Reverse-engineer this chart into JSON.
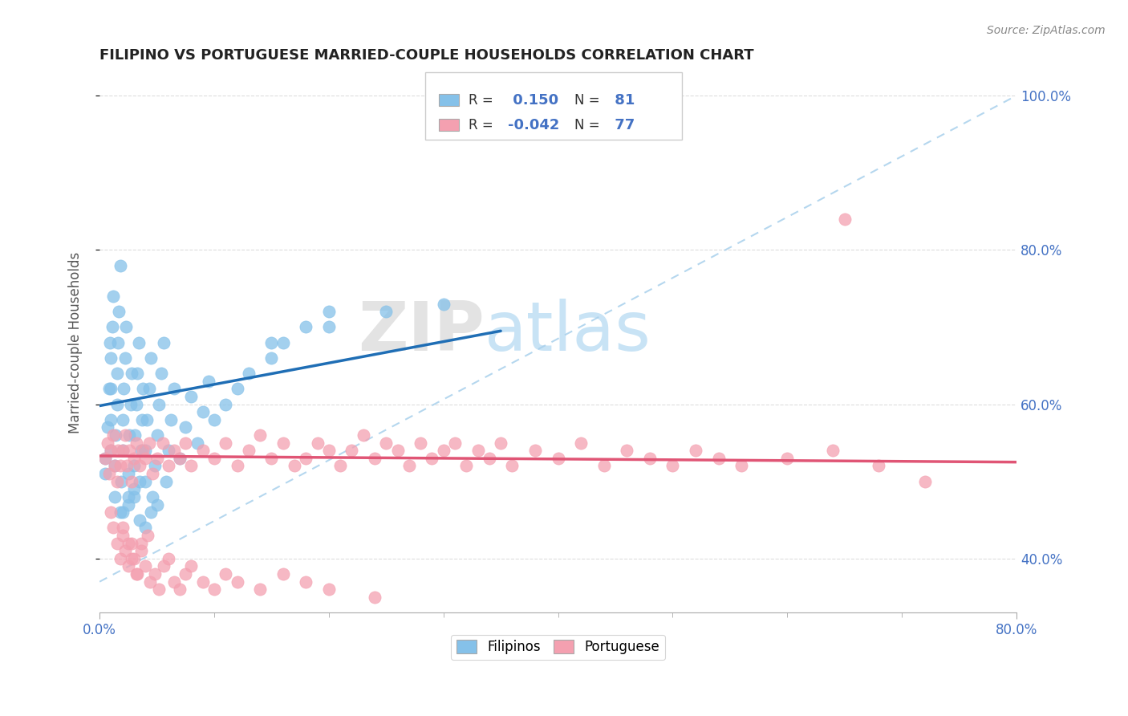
{
  "title": "FILIPINO VS PORTUGUESE MARRIED-COUPLE HOUSEHOLDS CORRELATION CHART",
  "source": "Source: ZipAtlas.com",
  "ylabel": "Married-couple Households",
  "xlim": [
    0.0,
    0.8
  ],
  "ylim": [
    0.33,
    1.03
  ],
  "xticks_major": [
    0.0,
    0.8
  ],
  "xticks_minor": [
    0.1,
    0.2,
    0.3,
    0.4,
    0.5,
    0.6,
    0.7
  ],
  "yticks": [
    0.4,
    0.6,
    0.8,
    1.0
  ],
  "filipino_color": "#85c1e9",
  "filipino_trend_color": "#1f6eb5",
  "portuguese_color": "#f4a0b0",
  "portuguese_trend_color": "#e05575",
  "dashed_line_color": "#a8d0ec",
  "filipino_R": 0.15,
  "filipino_N": 81,
  "portuguese_R": -0.042,
  "portuguese_N": 77,
  "legend_labels": [
    "Filipinos",
    "Portuguese"
  ],
  "watermark_zip": "ZIP",
  "watermark_atlas": "atlas",
  "grid_color": "#dddddd",
  "filipinos_x": [
    0.005,
    0.005,
    0.007,
    0.008,
    0.009,
    0.01,
    0.01,
    0.01,
    0.01,
    0.011,
    0.012,
    0.013,
    0.013,
    0.014,
    0.015,
    0.015,
    0.016,
    0.017,
    0.018,
    0.018,
    0.019,
    0.02,
    0.02,
    0.021,
    0.022,
    0.023,
    0.025,
    0.025,
    0.026,
    0.027,
    0.028,
    0.03,
    0.03,
    0.031,
    0.032,
    0.033,
    0.034,
    0.035,
    0.036,
    0.037,
    0.038,
    0.04,
    0.04,
    0.041,
    0.043,
    0.045,
    0.046,
    0.048,
    0.05,
    0.052,
    0.054,
    0.056,
    0.058,
    0.06,
    0.062,
    0.065,
    0.07,
    0.075,
    0.08,
    0.085,
    0.09,
    0.095,
    0.1,
    0.11,
    0.12,
    0.13,
    0.15,
    0.16,
    0.18,
    0.2,
    0.15,
    0.2,
    0.25,
    0.3,
    0.02,
    0.025,
    0.03,
    0.035,
    0.04,
    0.045,
    0.05
  ],
  "filipinos_y": [
    0.51,
    0.53,
    0.57,
    0.62,
    0.68,
    0.54,
    0.58,
    0.62,
    0.66,
    0.7,
    0.74,
    0.48,
    0.52,
    0.56,
    0.6,
    0.64,
    0.68,
    0.72,
    0.78,
    0.46,
    0.5,
    0.54,
    0.58,
    0.62,
    0.66,
    0.7,
    0.47,
    0.51,
    0.56,
    0.6,
    0.64,
    0.48,
    0.52,
    0.56,
    0.6,
    0.64,
    0.68,
    0.5,
    0.54,
    0.58,
    0.62,
    0.5,
    0.54,
    0.58,
    0.62,
    0.66,
    0.48,
    0.52,
    0.56,
    0.6,
    0.64,
    0.68,
    0.5,
    0.54,
    0.58,
    0.62,
    0.53,
    0.57,
    0.61,
    0.55,
    0.59,
    0.63,
    0.58,
    0.6,
    0.62,
    0.64,
    0.66,
    0.68,
    0.7,
    0.72,
    0.68,
    0.7,
    0.72,
    0.73,
    0.46,
    0.48,
    0.49,
    0.45,
    0.44,
    0.46,
    0.47
  ],
  "portuguese_x": [
    0.005,
    0.007,
    0.008,
    0.01,
    0.012,
    0.013,
    0.015,
    0.016,
    0.018,
    0.02,
    0.022,
    0.024,
    0.026,
    0.028,
    0.03,
    0.032,
    0.035,
    0.038,
    0.04,
    0.043,
    0.046,
    0.05,
    0.055,
    0.06,
    0.065,
    0.07,
    0.075,
    0.08,
    0.09,
    0.1,
    0.11,
    0.12,
    0.13,
    0.14,
    0.15,
    0.16,
    0.17,
    0.18,
    0.19,
    0.2,
    0.21,
    0.22,
    0.23,
    0.24,
    0.25,
    0.26,
    0.27,
    0.28,
    0.29,
    0.3,
    0.31,
    0.32,
    0.33,
    0.34,
    0.35,
    0.36,
    0.38,
    0.4,
    0.42,
    0.44,
    0.46,
    0.48,
    0.5,
    0.52,
    0.54,
    0.56,
    0.6,
    0.64,
    0.68,
    0.72,
    0.02,
    0.025,
    0.028,
    0.032,
    0.036,
    0.042,
    0.65
  ],
  "portuguese_y": [
    0.53,
    0.55,
    0.51,
    0.54,
    0.56,
    0.52,
    0.5,
    0.54,
    0.52,
    0.54,
    0.56,
    0.52,
    0.54,
    0.5,
    0.53,
    0.55,
    0.52,
    0.54,
    0.53,
    0.55,
    0.51,
    0.53,
    0.55,
    0.52,
    0.54,
    0.53,
    0.55,
    0.52,
    0.54,
    0.53,
    0.55,
    0.52,
    0.54,
    0.56,
    0.53,
    0.55,
    0.52,
    0.53,
    0.55,
    0.54,
    0.52,
    0.54,
    0.56,
    0.53,
    0.55,
    0.54,
    0.52,
    0.55,
    0.53,
    0.54,
    0.55,
    0.52,
    0.54,
    0.53,
    0.55,
    0.52,
    0.54,
    0.53,
    0.55,
    0.52,
    0.54,
    0.53,
    0.52,
    0.54,
    0.53,
    0.52,
    0.53,
    0.54,
    0.52,
    0.5,
    0.44,
    0.42,
    0.4,
    0.38,
    0.42,
    0.43,
    0.84
  ],
  "por_low_x": [
    0.01,
    0.012,
    0.015,
    0.018,
    0.02,
    0.022,
    0.025,
    0.028,
    0.03,
    0.033,
    0.036,
    0.04,
    0.044,
    0.048,
    0.052,
    0.056,
    0.06,
    0.065,
    0.07,
    0.075,
    0.08,
    0.09,
    0.1,
    0.11,
    0.12,
    0.14,
    0.16,
    0.18,
    0.2,
    0.24
  ],
  "por_low_y": [
    0.46,
    0.44,
    0.42,
    0.4,
    0.43,
    0.41,
    0.39,
    0.42,
    0.4,
    0.38,
    0.41,
    0.39,
    0.37,
    0.38,
    0.36,
    0.39,
    0.4,
    0.37,
    0.36,
    0.38,
    0.39,
    0.37,
    0.36,
    0.38,
    0.37,
    0.36,
    0.38,
    0.37,
    0.36,
    0.35
  ]
}
